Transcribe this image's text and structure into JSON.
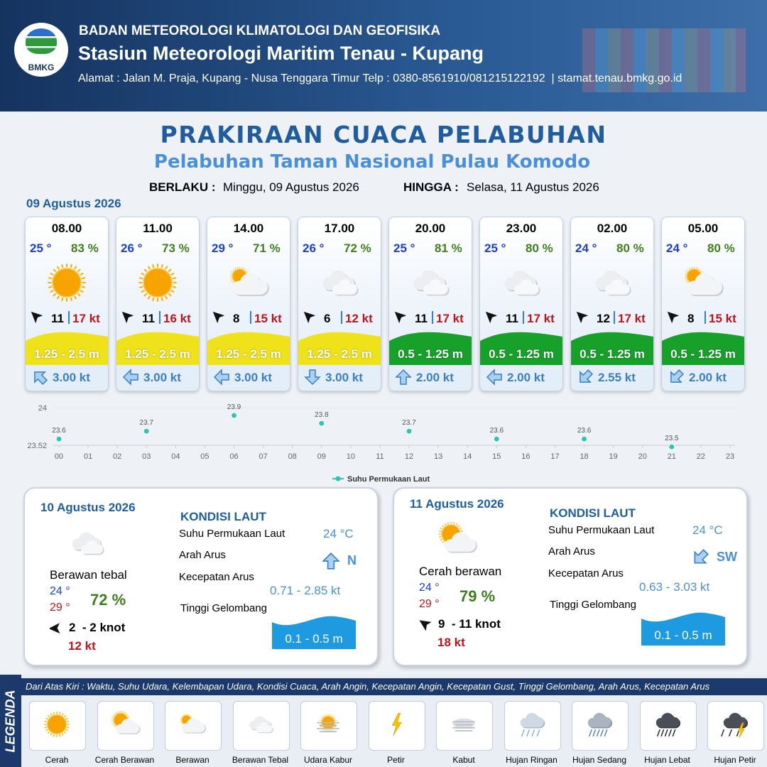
{
  "header": {
    "logo": "BMKG",
    "agency": "BADAN METEOROLOGI KLIMATOLOGI DAN GEOFISIKA",
    "station": "Stasiun Meteorologi Maritim Tenau - Kupang",
    "address": "Alamat : Jalan M. Praja, Kupang - Nusa Tenggara Timur Telp : 0380-8561910/081215122192  | stamat.tenau.bmkg.go.id"
  },
  "title": "PRAKIRAAN CUACA PELABUHAN",
  "subtitle": "Pelabuhan Taman Nasional Pulau Komodo",
  "validity": {
    "from_label": "BERLAKU :",
    "from": "Minggu, 09 Agustus 2026",
    "to_label": "HINGGA :",
    "to": "Selasa, 11 Agustus 2026"
  },
  "hourly": {
    "date": "09 Agustus 2026",
    "items": [
      {
        "time": "08.00",
        "temperature": "25 °",
        "humidity": "83 %",
        "wind_speed": 11,
        "gust": "17 kt",
        "wave": "1.25 - 2.5 m",
        "wave_color": "#efe21b",
        "current_speed": "3.00 kt"
      },
      {
        "time": "11.00",
        "temperature": "26 °",
        "humidity": "73 %",
        "wind_speed": 11,
        "gust": "16 kt",
        "wave": "1.25 - 2.5 m",
        "wave_color": "#efe21b",
        "current_speed": "3.00 kt"
      },
      {
        "time": "14.00",
        "temperature": "29 °",
        "humidity": "71 %",
        "wind_speed": 8,
        "gust": "15 kt",
        "wave": "1.25 - 2.5 m",
        "wave_color": "#efe21b",
        "current_speed": "3.00 kt"
      },
      {
        "time": "17.00",
        "temperature": "26 °",
        "humidity": "72 %",
        "wind_speed": 6,
        "gust": "12 kt",
        "wave": "1.25 - 2.5 m",
        "wave_color": "#efe21b",
        "current_speed": "3.00 kt"
      },
      {
        "time": "20.00",
        "temperature": "25 °",
        "humidity": "81 %",
        "wind_speed": 11,
        "gust": "17 kt",
        "wave": "0.5 - 1.25 m",
        "wave_color": "#17a02a",
        "current_speed": "2.00 kt"
      },
      {
        "time": "23.00",
        "temperature": "25 °",
        "humidity": "80 %",
        "wind_speed": 11,
        "gust": "17 kt",
        "wave": "0.5 - 1.25 m",
        "wave_color": "#17a02a",
        "current_speed": "2.00 kt"
      },
      {
        "time": "02.00",
        "temperature": "24 °",
        "humidity": "80 %",
        "wind_speed": 12,
        "gust": "17 kt",
        "wave": "0.5 - 1.25 m",
        "wave_color": "#17a02a",
        "current_speed": "2.55 kt"
      },
      {
        "time": "05.00",
        "temperature": "24 °",
        "humidity": "80 %",
        "wind_speed": 8,
        "gust": "15 kt",
        "wave": "0.5 - 1.25 m",
        "wave_color": "#17a02a",
        "current_speed": "2.00 kt"
      }
    ]
  },
  "chart_data": {
    "type": "scatter",
    "x": [
      0,
      3,
      6,
      9,
      12,
      15,
      18,
      21
    ],
    "series": [
      {
        "name": "Suhu Permukaan Laut",
        "color": "#2ec4b6",
        "values": [
          23.6,
          23.7,
          23.9,
          23.8,
          23.7,
          23.6,
          23.6,
          23.5
        ]
      }
    ],
    "xlim": [
      0,
      23
    ],
    "xticks": [
      {
        "value": 0,
        "label": "00"
      },
      {
        "value": 1,
        "label": "01"
      },
      {
        "value": 2,
        "label": "02"
      },
      {
        "value": 3,
        "label": "03"
      },
      {
        "value": 4,
        "label": "04"
      },
      {
        "value": 5,
        "label": "05"
      },
      {
        "value": 6,
        "label": "06"
      },
      {
        "value": 7,
        "label": "07"
      },
      {
        "value": 8,
        "label": "08"
      },
      {
        "value": 9,
        "label": "09"
      },
      10,
      11,
      12,
      13,
      14,
      15,
      16,
      17,
      18,
      19,
      20,
      21,
      22,
      23
    ],
    "ylim": [
      23.52,
      24
    ],
    "yticks": [
      23.52,
      24
    ],
    "grid": true,
    "legend": "bottom"
  },
  "daily": [
    {
      "date": "10 Agustus 2026",
      "condition": "Berawan tebal",
      "temp_min": "24 °",
      "temp_max": "29 °",
      "humidity": "72 %",
      "wind": "2  - 2 knot",
      "gust": "12 kt",
      "sea_title": "KONDISI LAUT",
      "sst_label": "Suhu Permukaan Laut",
      "sst": "24 °C",
      "current_dir_label": "Arah Arus",
      "current_dir": "N",
      "current_speed_label": "Kecepatan Arus",
      "current_speed": "0.71 - 2.85 kt",
      "wave_label": "Tinggi Gelombang",
      "wave": "0.1 - 0.5 m"
    },
    {
      "date": "11 Agustus 2026",
      "condition": "Cerah berawan",
      "temp_min": "24 °",
      "temp_max": "29 °",
      "humidity": "79 %",
      "wind": "9  - 11 knot",
      "gust": "18 kt",
      "sea_title": "KONDISI LAUT",
      "sst_label": "Suhu Permukaan Laut",
      "sst": "24 °C",
      "current_dir_label": "Arah Arus",
      "current_dir": "SW",
      "current_speed_label": "Kecepatan Arus",
      "current_speed": "0.63 - 3.03 kt",
      "wave_label": "Tinggi Gelombang",
      "wave": "0.1 - 0.5 m"
    }
  ],
  "legend": {
    "title": "LEGENDA",
    "description": "Dari Atas Kiri : Waktu, Suhu Udara, Kelembapan Udara, Kondisi Cuaca, Arah Angin, Kecepatan Angin, Kecepatan Gust, Tinggi Gelombang, Arah Arus, Kecepatan Arus",
    "items": [
      "Cerah",
      "Cerah Berawan",
      "Berawan",
      "Berawan Tebal",
      "Udara Kabur",
      "Petir",
      "Kabut",
      "Hujan Ringan",
      "Hujan Sedang",
      "Hujan Lebat",
      "Hujan Petir"
    ]
  }
}
